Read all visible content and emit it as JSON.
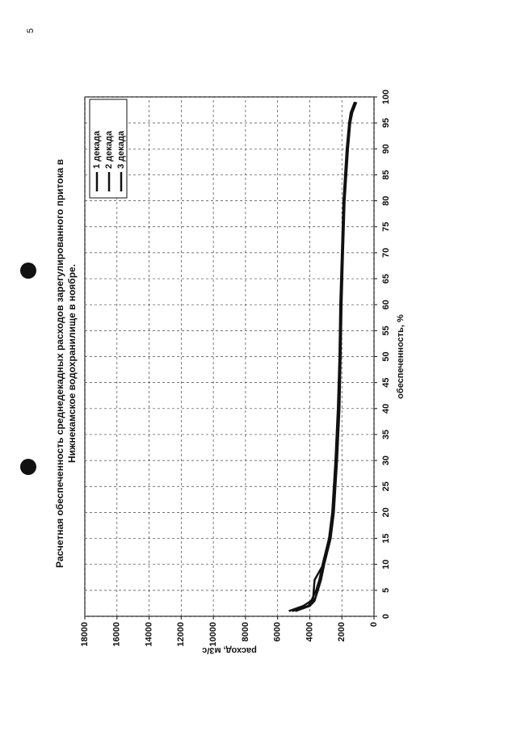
{
  "page_number": "5",
  "chart_data": {
    "type": "line",
    "title": [
      "Расчетная обеспеченность среднедекадных расходов зарегулированного притока в",
      "Нижнекамское водохранилище в ноябре."
    ],
    "x_label": "обеспеченность, %",
    "y_label": "расход, м3/с",
    "x": [
      1,
      2,
      3,
      5,
      7,
      10,
      15,
      20,
      30,
      40,
      50,
      60,
      70,
      80,
      90,
      95,
      97,
      99
    ],
    "series": [
      {
        "name": "1 декада",
        "color": "#111",
        "values": [
          5300,
          4400,
          3900,
          3600,
          3400,
          3200,
          2800,
          2600,
          2400,
          2250,
          2150,
          2100,
          2000,
          1900,
          1700,
          1550,
          1450,
          1200
        ]
      },
      {
        "name": "2 декада",
        "color": "#111",
        "values": [
          5100,
          4100,
          3800,
          3750,
          3700,
          3150,
          2750,
          2550,
          2350,
          2200,
          2100,
          2050,
          1950,
          1850,
          1650,
          1500,
          1400,
          1150
        ]
      },
      {
        "name": "3 декада",
        "color": "#111",
        "values": [
          4900,
          4000,
          3700,
          3500,
          3300,
          3100,
          2700,
          2500,
          2300,
          2150,
          2080,
          2020,
          1930,
          1830,
          1620,
          1480,
          1350,
          1100
        ]
      }
    ],
    "xlim": [
      0,
      100
    ],
    "xticks": [
      0,
      5,
      10,
      15,
      20,
      25,
      30,
      35,
      40,
      45,
      50,
      55,
      60,
      65,
      70,
      75,
      80,
      85,
      90,
      95,
      100
    ],
    "ylim": [
      0,
      18000
    ],
    "yticks": [
      0,
      2000,
      4000,
      6000,
      8000,
      10000,
      12000,
      14000,
      16000,
      18000
    ],
    "grid": true
  }
}
